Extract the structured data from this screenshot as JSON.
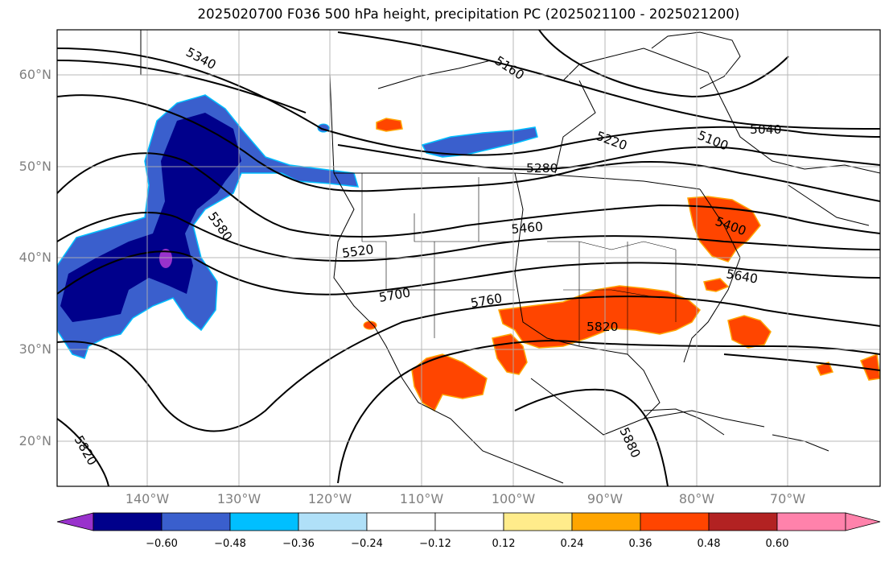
{
  "title": "2025020700 F036 500 hPa height, precipitation PC (2025021100 - 2025021200)",
  "lat_labels": [
    "60°N",
    "50°N",
    "40°N",
    "30°N",
    "20°N"
  ],
  "lon_labels": [
    "140°W",
    "130°W",
    "120°W",
    "110°W",
    "100°W",
    "90°W",
    "80°W",
    "70°W"
  ],
  "contour_labels": [
    "5340",
    "5160",
    "5040",
    "5100",
    "5220",
    "5280",
    "5460",
    "5400",
    "5520",
    "5580",
    "5640",
    "5700",
    "5760",
    "5820",
    "5880",
    "5820"
  ],
  "colorbar": {
    "ticks": [
      "−0.60",
      "−0.48",
      "−0.36",
      "−0.24",
      "−0.12",
      "0.12",
      "0.24",
      "0.36",
      "0.48",
      "0.60"
    ],
    "colors": [
      "#9932cc",
      "#00008b",
      "#3a5fcd",
      "#00bfff",
      "#b0e0f8",
      "#ffffff",
      "#ffec8b",
      "#ffa500",
      "#ff4500",
      "#b22222",
      "#ff82ab"
    ]
  }
}
